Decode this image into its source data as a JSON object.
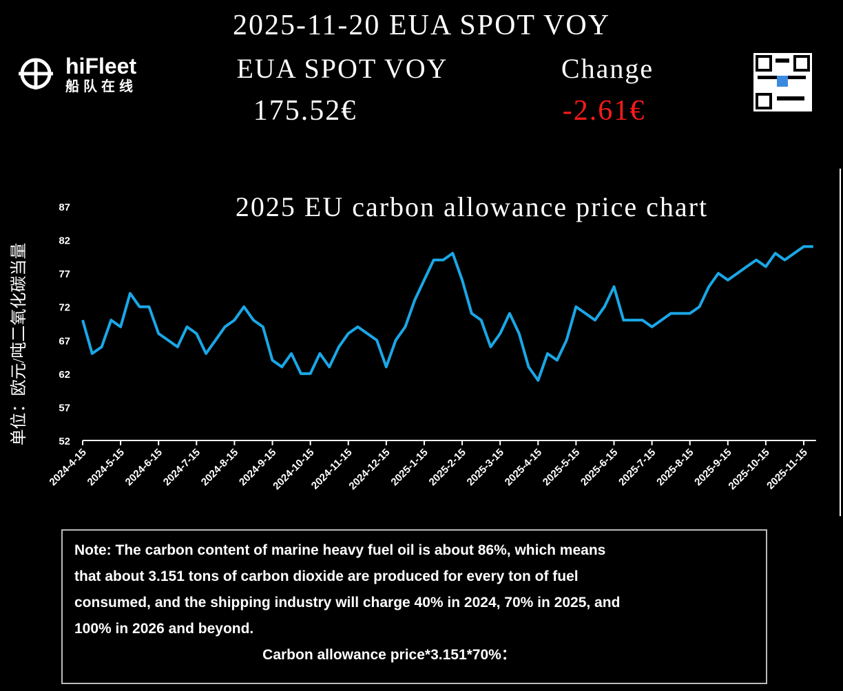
{
  "header": {
    "title": "2025-11-20 EUA SPOT VOY",
    "label_name": "EUA SPOT VOY",
    "label_change": "Change",
    "price": "175.52€",
    "change": "-2.61€",
    "logo_text": "hiFleet",
    "logo_subtext": "船队在线"
  },
  "chart_data": {
    "type": "line",
    "title": "2025 EU carbon allowance price chart",
    "y_label": "单位：欧元/吨二氧化碳当量",
    "categories": [
      "2024-4-15",
      null,
      null,
      null,
      "2024-5-15",
      null,
      null,
      null,
      "2024-6-15",
      null,
      null,
      null,
      "2024-7-15",
      null,
      null,
      null,
      "2024-8-15",
      null,
      null,
      null,
      "2024-9-15",
      null,
      null,
      null,
      "2024-10-15",
      null,
      null,
      null,
      "2024-11-15",
      null,
      null,
      null,
      "2024-12-15",
      null,
      null,
      null,
      "2025-1-15",
      null,
      null,
      null,
      "2025-2-15",
      null,
      null,
      null,
      "2025-3-15",
      null,
      null,
      null,
      "2025-4-15",
      null,
      null,
      null,
      "2025-5-15",
      null,
      null,
      null,
      "2025-6-15",
      null,
      null,
      null,
      "2025-7-15",
      null,
      null,
      null,
      "2025-8-15",
      null,
      null,
      null,
      "2025-9-15",
      null,
      null,
      null,
      "2025-10-15",
      null,
      null,
      null,
      "2025-11-15",
      null
    ],
    "series": [
      {
        "name": "EUA",
        "color": "#1aa7e6",
        "values": [
          70,
          65,
          66,
          70,
          69,
          74,
          72,
          72,
          68,
          67,
          66,
          69,
          68,
          65,
          67,
          69,
          70,
          72,
          70,
          69,
          64,
          63,
          65,
          62,
          62,
          65,
          63,
          66,
          68,
          69,
          68,
          67,
          63,
          67,
          69,
          73,
          76,
          79,
          79,
          80,
          76,
          71,
          70,
          66,
          68,
          71,
          68,
          63,
          61,
          65,
          64,
          67,
          72,
          71,
          70,
          72,
          75,
          70,
          70,
          70,
          69,
          70,
          71,
          71,
          71,
          72,
          75,
          77,
          76,
          77,
          78,
          79,
          78,
          80,
          79,
          80,
          81,
          81
        ]
      }
    ],
    "ylim": [
      52,
      87
    ],
    "yticks": [
      52,
      57,
      62,
      67,
      72,
      77,
      82,
      87
    ]
  },
  "note": {
    "lines": [
      "Note: The carbon content of marine heavy fuel oil is about 86%, which means",
      "that about 3.151 tons of carbon dioxide are produced for every ton of fuel",
      "consumed, and the shipping industry will charge 40% in 2024, 70% in 2025, and",
      "100% in 2026 and beyond."
    ],
    "formula": "Carbon allowance price*3.151*70%："
  }
}
